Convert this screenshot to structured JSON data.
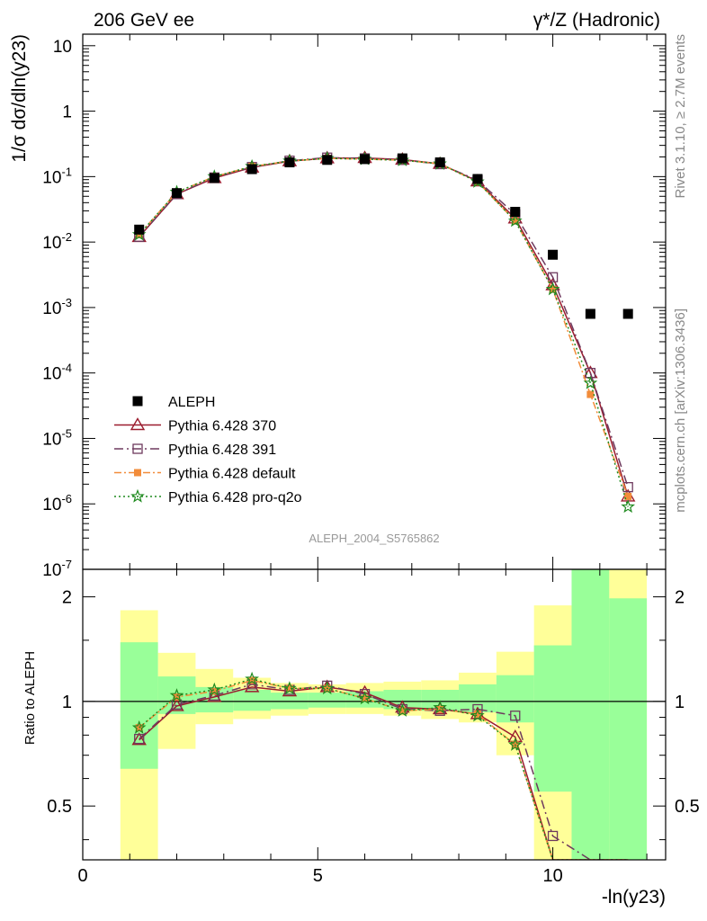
{
  "header": {
    "left": "206 GeV ee",
    "right": "γ*/Z (Hadronic)"
  },
  "side_labels": {
    "rivet": "Rivet 3.1.10, ≥ 2.7M events",
    "mcplots": "mcplots.cern.ch [arXiv:1306.3436]"
  },
  "watermark": "ALEPH_2004_S5765862",
  "axes": {
    "ylabel_main": "1/σ  dσ/dln(y23)",
    "ylabel_ratio": "Ratio to ALEPH",
    "xlabel": "-ln(y23)",
    "x_ticks": [
      "0",
      "5",
      "10"
    ],
    "y_ticks_main": [
      "10",
      "1",
      "10-1",
      "10-2",
      "10-3",
      "10-4",
      "10-5",
      "10-6",
      "10-7"
    ],
    "y_ticks_ratio": [
      "0.5",
      "1",
      "2"
    ]
  },
  "chart_data": {
    "type": "line",
    "x_range": [
      0,
      12.4
    ],
    "main": {
      "y_scale": "log",
      "ylim": [
        1e-07,
        15
      ]
    },
    "ratio": {
      "y_scale": "log",
      "ylim": [
        0.35,
        2.4
      ],
      "reference": "ALEPH"
    },
    "x": [
      1.2,
      2.0,
      2.8,
      3.6,
      4.4,
      5.2,
      6.0,
      6.8,
      7.6,
      8.4,
      9.2,
      10.0,
      10.8,
      11.6
    ],
    "bins": [
      [
        0.8,
        1.6
      ],
      [
        1.6,
        2.4
      ],
      [
        2.4,
        3.2
      ],
      [
        3.2,
        4.0
      ],
      [
        4.0,
        4.8
      ],
      [
        4.8,
        5.6
      ],
      [
        5.6,
        6.4
      ],
      [
        6.4,
        7.2
      ],
      [
        7.2,
        8.0
      ],
      [
        8.0,
        8.8
      ],
      [
        8.8,
        9.6
      ],
      [
        9.6,
        10.4
      ],
      [
        10.4,
        11.2
      ],
      [
        11.2,
        12.0
      ]
    ],
    "data": {
      "name": "ALEPH",
      "values": [
        0.0155,
        0.056,
        0.095,
        0.13,
        0.165,
        0.18,
        0.185,
        0.19,
        0.165,
        0.092,
        0.029,
        0.0064,
        0.0008,
        0.0008
      ]
    },
    "bands": {
      "green": [
        [
          0.64,
          1.48
        ],
        [
          0.92,
          1.18
        ],
        [
          0.93,
          1.1
        ],
        [
          0.94,
          1.08
        ],
        [
          0.95,
          1.06
        ],
        [
          0.96,
          1.06
        ],
        [
          0.96,
          1.07
        ],
        [
          0.95,
          1.08
        ],
        [
          0.94,
          1.08
        ],
        [
          0.93,
          1.12
        ],
        [
          0.87,
          1.19
        ],
        [
          0.55,
          1.45
        ],
        [
          0.3,
          2.4
        ],
        [
          0.3,
          1.98
        ]
      ],
      "yellow": [
        [
          0.3,
          1.83
        ],
        [
          0.73,
          1.38
        ],
        [
          0.86,
          1.24
        ],
        [
          0.89,
          1.17
        ],
        [
          0.91,
          1.13
        ],
        [
          0.92,
          1.12
        ],
        [
          0.92,
          1.13
        ],
        [
          0.91,
          1.14
        ],
        [
          0.89,
          1.15
        ],
        [
          0.87,
          1.21
        ],
        [
          0.7,
          1.39
        ],
        [
          0.3,
          1.89
        ],
        [
          0.3,
          2.4
        ],
        [
          0.3,
          2.4
        ]
      ]
    },
    "series": [
      {
        "name": "Pythia 6.428 370",
        "color": "#9b1c2e",
        "style": "solid",
        "marker": "triangle-open",
        "values": [
          0.012,
          0.054,
          0.095,
          0.138,
          0.172,
          0.191,
          0.193,
          0.182,
          0.157,
          0.085,
          0.023,
          0.0022,
          0.0001,
          1.3e-06
        ],
        "ratio": [
          0.775,
          0.97,
          1.03,
          1.1,
          1.07,
          1.1,
          1.06,
          0.96,
          0.95,
          0.92,
          0.79,
          0.34,
          0.3,
          0.3
        ]
      },
      {
        "name": "Pythia 6.428 391",
        "color": "#6e3a5e",
        "style": "dashdot",
        "marker": "square-open",
        "values": [
          0.012,
          0.054,
          0.097,
          0.14,
          0.175,
          0.195,
          0.19,
          0.18,
          0.155,
          0.088,
          0.0265,
          0.0029,
          0.0001,
          1.8e-06
        ],
        "ratio": [
          0.78,
          0.98,
          1.04,
          1.12,
          1.08,
          1.11,
          1.05,
          0.95,
          0.94,
          0.95,
          0.91,
          0.41,
          0.3,
          0.3
        ]
      },
      {
        "name": "Pythia 6.428 default",
        "color": "#f28c3a",
        "style": "dashdot2",
        "marker": "square-filled",
        "values": [
          0.013,
          0.058,
          0.1,
          0.143,
          0.173,
          0.19,
          0.185,
          0.178,
          0.157,
          0.083,
          0.021,
          0.0019,
          4.7e-05,
          1.3e-06
        ],
        "ratio": [
          0.84,
          1.03,
          1.07,
          1.15,
          1.09,
          1.09,
          1.02,
          0.94,
          0.95,
          0.92,
          0.75,
          0.3,
          0.3,
          0.3
        ]
      },
      {
        "name": "Pythia 6.428 pro-q2o",
        "color": "#1f8a1f",
        "style": "dotted",
        "marker": "star",
        "values": [
          0.013,
          0.058,
          0.1,
          0.143,
          0.173,
          0.19,
          0.185,
          0.178,
          0.157,
          0.083,
          0.021,
          0.0019,
          7e-05,
          9e-07
        ],
        "ratio": [
          0.84,
          1.04,
          1.08,
          1.16,
          1.09,
          1.09,
          1.02,
          0.94,
          0.96,
          0.91,
          0.75,
          0.3,
          0.3,
          0.3
        ]
      }
    ],
    "legend": [
      "ALEPH",
      "Pythia 6.428 370",
      "Pythia 6.428 391",
      "Pythia 6.428 default",
      "Pythia 6.428 pro-q2o"
    ],
    "legend_position": "bottom-left"
  }
}
